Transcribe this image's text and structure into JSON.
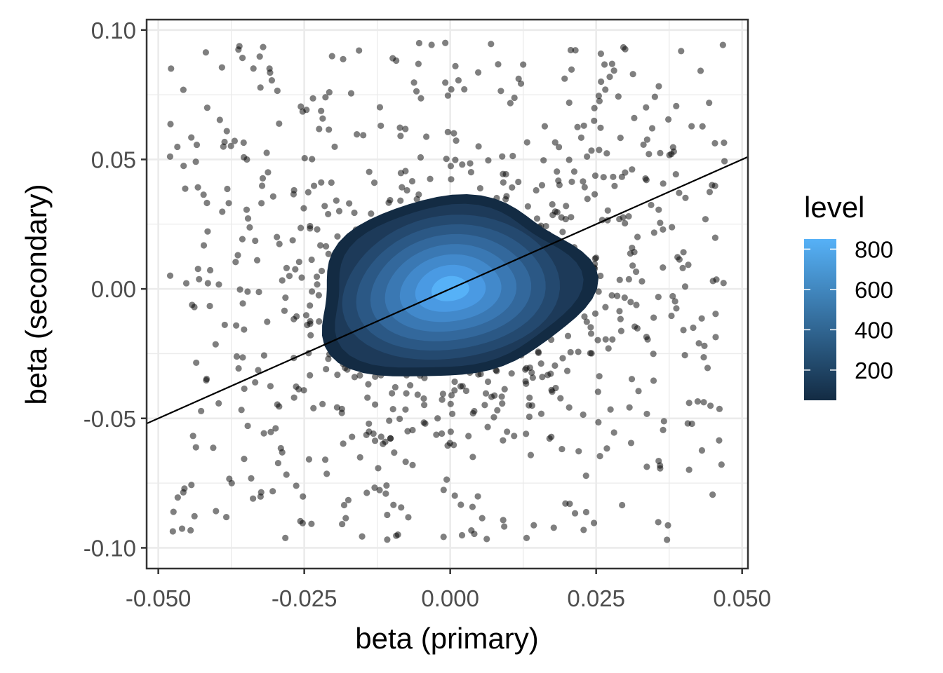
{
  "chart_data": {
    "type": "scatter",
    "xlabel": "beta (primary)",
    "ylabel": "beta (secondary)",
    "xlim": [
      -0.052,
      0.051
    ],
    "ylim": [
      -0.108,
      0.104
    ],
    "x_ticks": [
      "-0.050",
      "-0.025",
      "0.000",
      "0.025",
      "0.050"
    ],
    "x_tick_values": [
      -0.05,
      -0.025,
      0.0,
      0.025,
      0.05
    ],
    "y_ticks": [
      "-0.10",
      "-0.05",
      "0.00",
      "0.05",
      "0.10"
    ],
    "y_tick_values": [
      -0.1,
      -0.05,
      0.0,
      0.05,
      0.1
    ],
    "grid": true,
    "point_color": "#000000",
    "point_opacity": 0.5,
    "scatter_points_approx": 1000,
    "scatter_spread_x": [
      -0.048,
      0.047
    ],
    "scatter_spread_y": [
      -0.098,
      0.095
    ],
    "reference_line": {
      "slope": 1.0,
      "intercept": 0.0
    },
    "density_contours": {
      "center": [
        0.0,
        0.0
      ],
      "levels": [
        100,
        200,
        300,
        400,
        500,
        600,
        700,
        800
      ],
      "colors": [
        "#132B43",
        "#1d3a59",
        "#24496f",
        "#2b5885",
        "#33689c",
        "#3a78b3",
        "#4289cb",
        "#4a9ae3",
        "#56B1F7"
      ]
    },
    "legend": {
      "title": "level",
      "placement": "right",
      "labels": [
        "800",
        "600",
        "400",
        "200"
      ],
      "label_values": [
        800,
        600,
        400,
        200
      ],
      "range": [
        50,
        850
      ],
      "low_color": "#132B43",
      "high_color": "#56B1F7"
    }
  }
}
